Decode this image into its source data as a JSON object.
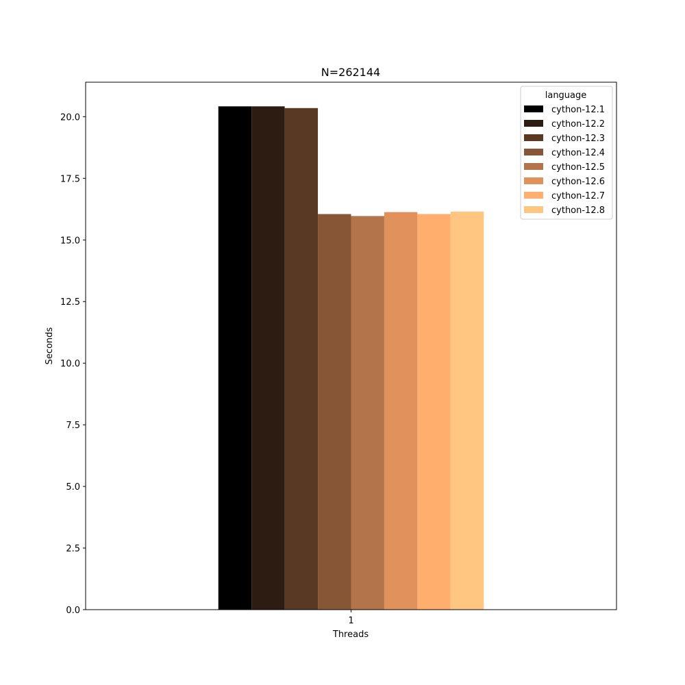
{
  "chart_data": {
    "type": "bar",
    "title": "N=262144",
    "xlabel": "Threads",
    "ylabel": "Seconds",
    "categories": [
      "1"
    ],
    "ylim": [
      0,
      21.4
    ],
    "yticks": [
      "0.0",
      "2.5",
      "5.0",
      "7.5",
      "10.0",
      "12.5",
      "15.0",
      "17.5",
      "20.0"
    ],
    "grid": false,
    "legend": {
      "title": "language",
      "placement": "top-right"
    },
    "series": [
      {
        "name": "cython-12.1",
        "values": [
          20.42
        ],
        "color": "#000000"
      },
      {
        "name": "cython-12.2",
        "values": [
          20.42
        ],
        "color": "#2d1c12"
      },
      {
        "name": "cython-12.3",
        "values": [
          20.35
        ],
        "color": "#5a3924"
      },
      {
        "name": "cython-12.4",
        "values": [
          16.05
        ],
        "color": "#875636"
      },
      {
        "name": "cython-12.5",
        "values": [
          15.97
        ],
        "color": "#b4744a"
      },
      {
        "name": "cython-12.6",
        "values": [
          16.13
        ],
        "color": "#e1915c"
      },
      {
        "name": "cython-12.7",
        "values": [
          16.05
        ],
        "color": "#ffae6e"
      },
      {
        "name": "cython-12.8",
        "values": [
          16.15
        ],
        "color": "#ffc681"
      }
    ]
  }
}
